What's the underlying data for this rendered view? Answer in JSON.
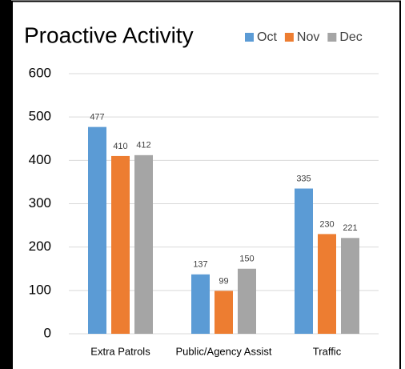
{
  "chart_data": {
    "type": "bar",
    "title": "Proactive Activity",
    "categories": [
      "Extra Patrols",
      "Public/Agency Assist",
      "Traffic"
    ],
    "series": [
      {
        "name": "Oct",
        "color": "#5b9bd5",
        "values": [
          477,
          137,
          335
        ]
      },
      {
        "name": "Nov",
        "color": "#ed7d31",
        "values": [
          410,
          99,
          230
        ]
      },
      {
        "name": "Dec",
        "color": "#a5a5a5",
        "values": [
          412,
          150,
          221
        ]
      }
    ],
    "ylim": [
      0,
      600
    ],
    "yticks": [
      0,
      100,
      200,
      300,
      400,
      500,
      600
    ],
    "grid": true,
    "legend": "top-right"
  }
}
